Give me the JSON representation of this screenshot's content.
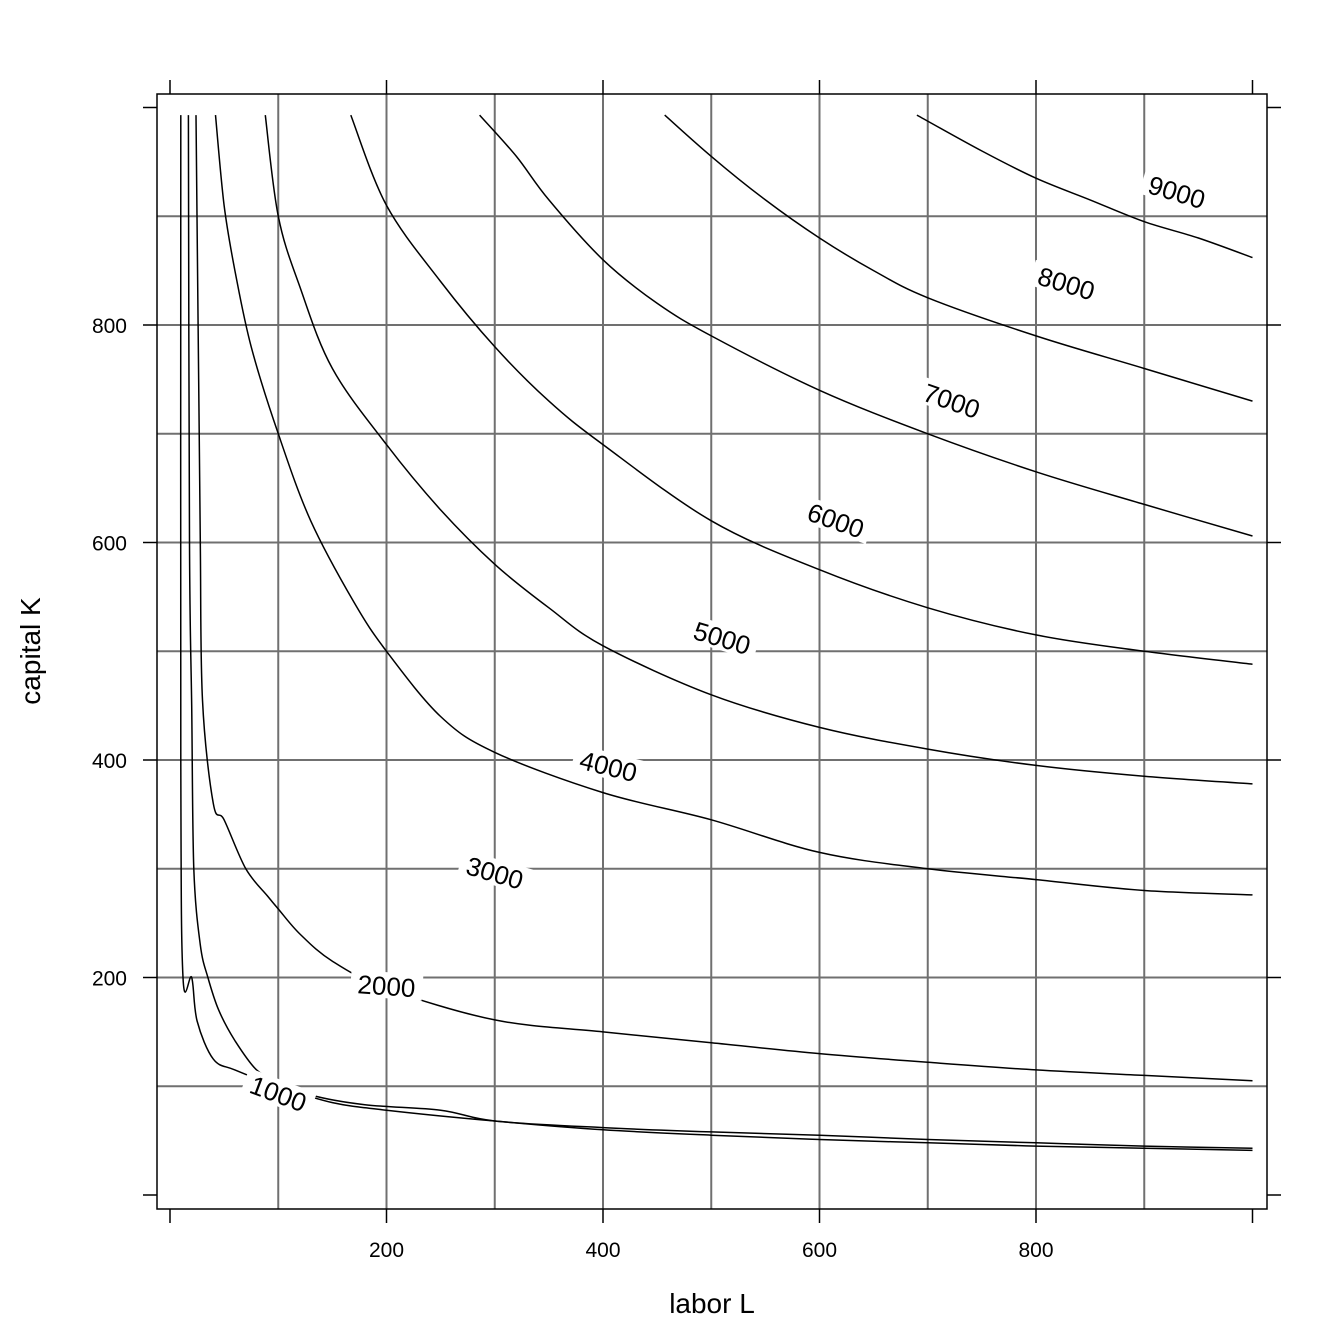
{
  "chart_data": {
    "type": "contour",
    "xlabel": "labor L",
    "ylabel": "capital K",
    "xlim": [
      0,
      1000
    ],
    "ylim": [
      0,
      1000
    ],
    "x_ticks": [
      200,
      400,
      600,
      800
    ],
    "y_ticks": [
      200,
      400,
      600,
      800
    ],
    "x_grid": [
      100,
      200,
      300,
      400,
      500,
      600,
      700,
      800,
      900
    ],
    "y_grid": [
      100,
      200,
      300,
      400,
      500,
      600,
      700,
      800,
      900
    ],
    "grid": true,
    "levels": [
      {
        "level": 1000,
        "label": "1000",
        "label_at": [
          100,
          93
        ],
        "points": [
          [
            10,
            993
          ],
          [
            10,
            400
          ],
          [
            12,
            200
          ],
          [
            20,
            200
          ],
          [
            25,
            160
          ],
          [
            40,
            125
          ],
          [
            60,
            115
          ],
          [
            100,
            100
          ],
          [
            150,
            85
          ],
          [
            200,
            78
          ],
          [
            300,
            68
          ],
          [
            400,
            60
          ],
          [
            500,
            55
          ],
          [
            600,
            51
          ],
          [
            700,
            48
          ],
          [
            800,
            45
          ],
          [
            900,
            43
          ],
          [
            1000,
            41
          ]
        ]
      },
      {
        "level": 2000,
        "label": "2000",
        "label_at": [
          200,
          192
        ],
        "points": [
          [
            17,
            993
          ],
          [
            18,
            600
          ],
          [
            20,
            450
          ],
          [
            22,
            300
          ],
          [
            28,
            230
          ],
          [
            35,
            200
          ],
          [
            45,
            170
          ],
          [
            60,
            142
          ],
          [
            80,
            115
          ],
          [
            100,
            105
          ],
          [
            130,
            92
          ],
          [
            180,
            83
          ],
          [
            250,
            78
          ],
          [
            300,
            68
          ],
          [
            400,
            62
          ],
          [
            500,
            58
          ],
          [
            600,
            55
          ],
          [
            700,
            51
          ],
          [
            800,
            48
          ],
          [
            900,
            45
          ],
          [
            1000,
            43
          ]
        ]
      },
      {
        "level": 3000,
        "label": "3000",
        "label_at": [
          300,
          296
        ],
        "points": [
          [
            24,
            993
          ],
          [
            26,
            800
          ],
          [
            28,
            600
          ],
          [
            30,
            455
          ],
          [
            40,
            360
          ],
          [
            50,
            345
          ],
          [
            70,
            300
          ],
          [
            90,
            275
          ],
          [
            100,
            263
          ],
          [
            120,
            240
          ],
          [
            150,
            215
          ],
          [
            200,
            190
          ],
          [
            300,
            161
          ],
          [
            400,
            150
          ],
          [
            500,
            140
          ],
          [
            600,
            130
          ],
          [
            700,
            122
          ],
          [
            800,
            115
          ],
          [
            900,
            110
          ],
          [
            1000,
            105
          ]
        ]
      },
      {
        "level": 4000,
        "label": "4000",
        "label_at": [
          405,
          394
        ],
        "points": [
          [
            42,
            993
          ],
          [
            50,
            910
          ],
          [
            60,
            850
          ],
          [
            75,
            780
          ],
          [
            100,
            700
          ],
          [
            130,
            620
          ],
          [
            170,
            545
          ],
          [
            200,
            500
          ],
          [
            250,
            440
          ],
          [
            300,
            407
          ],
          [
            400,
            370
          ],
          [
            500,
            345
          ],
          [
            600,
            315
          ],
          [
            700,
            300
          ],
          [
            800,
            290
          ],
          [
            900,
            280
          ],
          [
            1000,
            276
          ]
        ]
      },
      {
        "level": 5000,
        "label": "5000",
        "label_at": [
          510,
          512
        ],
        "points": [
          [
            88,
            993
          ],
          [
            100,
            900
          ],
          [
            120,
            835
          ],
          [
            150,
            760
          ],
          [
            200,
            690
          ],
          [
            250,
            630
          ],
          [
            300,
            580
          ],
          [
            350,
            540
          ],
          [
            400,
            505
          ],
          [
            500,
            460
          ],
          [
            600,
            430
          ],
          [
            700,
            410
          ],
          [
            800,
            395
          ],
          [
            900,
            385
          ],
          [
            1000,
            378
          ]
        ]
      },
      {
        "level": 6000,
        "label": "6000",
        "label_at": [
          615,
          620
        ],
        "points": [
          [
            167,
            993
          ],
          [
            200,
            910
          ],
          [
            250,
            840
          ],
          [
            300,
            780
          ],
          [
            350,
            730
          ],
          [
            400,
            690
          ],
          [
            500,
            620
          ],
          [
            600,
            575
          ],
          [
            700,
            540
          ],
          [
            800,
            515
          ],
          [
            900,
            500
          ],
          [
            1000,
            488
          ]
        ]
      },
      {
        "level": 7000,
        "label": "7000",
        "label_at": [
          722,
          730
        ],
        "points": [
          [
            286,
            993
          ],
          [
            320,
            955
          ],
          [
            350,
            915
          ],
          [
            400,
            860
          ],
          [
            450,
            820
          ],
          [
            500,
            790
          ],
          [
            600,
            740
          ],
          [
            700,
            700
          ],
          [
            800,
            665
          ],
          [
            900,
            635
          ],
          [
            1000,
            606
          ]
        ]
      },
      {
        "level": 8000,
        "label": "8000",
        "label_at": [
          828,
          838
        ],
        "points": [
          [
            457,
            993
          ],
          [
            500,
            955
          ],
          [
            550,
            915
          ],
          [
            600,
            880
          ],
          [
            650,
            850
          ],
          [
            700,
            825
          ],
          [
            800,
            790
          ],
          [
            900,
            760
          ],
          [
            1000,
            730
          ]
        ]
      },
      {
        "level": 9000,
        "label": "9000",
        "label_at": [
          930,
          922
        ],
        "points": [
          [
            690,
            993
          ],
          [
            750,
            960
          ],
          [
            800,
            935
          ],
          [
            850,
            915
          ],
          [
            900,
            895
          ],
          [
            950,
            880
          ],
          [
            1000,
            862
          ]
        ]
      }
    ]
  }
}
